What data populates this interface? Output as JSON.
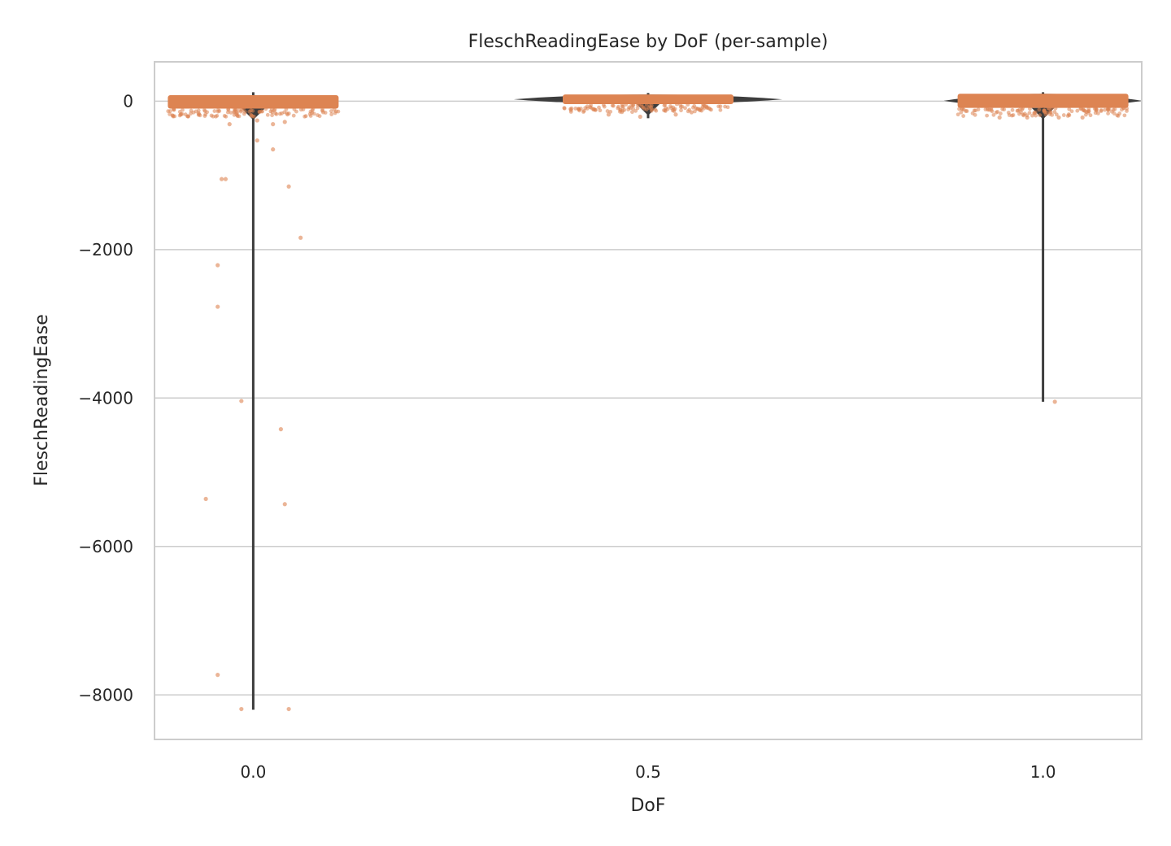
{
  "chart_data": {
    "type": "scatter",
    "title": "FleschReadingEase by DoF (per-sample)",
    "xlabel": "DoF",
    "ylabel": "FleschReadingEase",
    "categories": [
      "0.0",
      "0.5",
      "1.0"
    ],
    "ylim": [
      -8600,
      530
    ],
    "yticks": [
      0,
      -2000,
      -4000,
      -6000,
      -8000
    ],
    "ytick_labels": [
      "0",
      "−2000",
      "−4000",
      "−6000",
      "−8000"
    ],
    "grid": "horizontal",
    "colors": {
      "points": "#dd8452",
      "violin": "#3d3d3d",
      "grid": "#cccccc"
    },
    "violins": [
      {
        "category": "0.0",
        "min": -8200,
        "max": 120,
        "bulk_low": -100,
        "bulk_high": 80
      },
      {
        "category": "0.5",
        "min": -230,
        "max": 110,
        "bulk_low": -40,
        "bulk_high": 90
      },
      {
        "category": "1.0",
        "min": -4050,
        "max": 120,
        "bulk_low": -90,
        "bulk_high": 100
      }
    ],
    "series": [
      {
        "category": "0.0",
        "points": [
          {
            "offset": -0.07,
            "y": -1050
          },
          {
            "offset": -0.08,
            "y": -1050
          },
          {
            "offset": 0.09,
            "y": -1150
          },
          {
            "offset": 0.12,
            "y": -1840
          },
          {
            "offset": -0.09,
            "y": -2210
          },
          {
            "offset": -0.09,
            "y": -2770
          },
          {
            "offset": -0.03,
            "y": -4040
          },
          {
            "offset": 0.07,
            "y": -4420
          },
          {
            "offset": -0.12,
            "y": -5360
          },
          {
            "offset": 0.08,
            "y": -5430
          },
          {
            "offset": -0.09,
            "y": -7730
          },
          {
            "offset": -0.03,
            "y": -8190
          },
          {
            "offset": 0.09,
            "y": -8190
          },
          {
            "offset": 0.05,
            "y": -650
          },
          {
            "offset": 0.01,
            "y": -530
          },
          {
            "offset": -0.06,
            "y": -310
          },
          {
            "offset": 0.01,
            "y": -260
          },
          {
            "offset": 0.05,
            "y": -310
          },
          {
            "offset": 0.08,
            "y": -280
          }
        ]
      },
      {
        "category": "0.5",
        "points": [
          {
            "offset": -0.02,
            "y": -210
          },
          {
            "offset": 0.07,
            "y": -180
          },
          {
            "offset": -0.1,
            "y": -180
          },
          {
            "offset": 0.11,
            "y": -150
          }
        ]
      },
      {
        "category": "1.0",
        "points": [
          {
            "offset": 0.03,
            "y": -4050
          },
          {
            "offset": -0.11,
            "y": -220
          },
          {
            "offset": 0.04,
            "y": -220
          },
          {
            "offset": 0.1,
            "y": -220
          },
          {
            "offset": -0.04,
            "y": -220
          }
        ]
      }
    ]
  }
}
